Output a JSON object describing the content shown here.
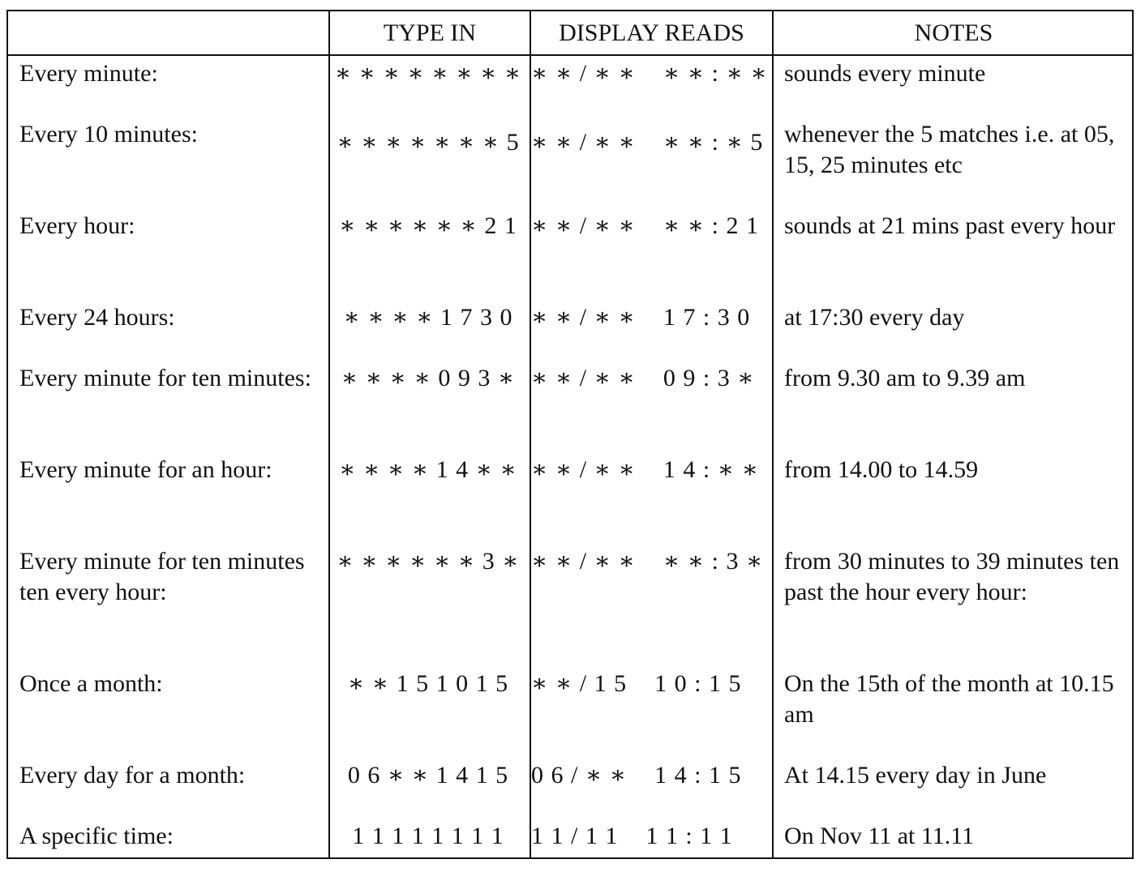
{
  "headers": [
    "",
    "TYPE IN",
    "DISPLAY READS",
    "NOTES"
  ],
  "rows": [
    {
      "label": "Every minute:",
      "type_in": "∗ ∗ ∗ ∗ ∗ ∗ ∗ ∗",
      "display": "∗ ∗ / ∗ ∗    ∗ ∗ : ∗ ∗",
      "notes": "sounds every minute"
    },
    {
      "label": "Every 10 minutes:",
      "type_in": "∗ ∗ ∗ ∗ ∗ ∗ ∗ 5",
      "display": "∗ ∗ / ∗ ∗    ∗ ∗ : ∗ 5",
      "notes": "whenever the 5 matches i.e. at 05, 15, 25 minutes etc"
    },
    {
      "label": "Every hour:",
      "type_in": "∗ ∗ ∗ ∗ ∗ ∗ 2 1",
      "display": "∗ ∗ / ∗ ∗    ∗ ∗ : 2 1",
      "notes": "sounds at 21 mins past every hour"
    },
    {
      "label": "Every 24 hours:",
      "type_in": "∗ ∗ ∗ ∗ 1 7 3 0",
      "display": "∗ ∗ / ∗ ∗    1 7 : 3 0",
      "notes": "at 17:30 every day"
    },
    {
      "label": "Every minute for ten minutes:",
      "type_in": "∗ ∗ ∗ ∗ 0 9 3 ∗",
      "display": "∗ ∗ / ∗ ∗    0 9 : 3 ∗",
      "notes": "from 9.30 am to 9.39 am"
    },
    {
      "label": "Every minute for an hour:",
      "type_in": "∗ ∗ ∗ ∗ 1 4 ∗ ∗",
      "display": "∗ ∗ / ∗ ∗    1 4 : ∗ ∗",
      "notes": "from 14.00 to 14.59"
    },
    {
      "label": "Every minute for ten minutes ten every hour:",
      "type_in": "∗ ∗ ∗ ∗ ∗ ∗ 3 ∗",
      "display": "∗ ∗ / ∗ ∗    ∗ ∗ : 3 ∗",
      "notes": "from 30 minutes to 39 minutes ten past the hour every hour:"
    },
    {
      "label": "Once a month:",
      "type_in": "∗ ∗ 1 5 1 0 1 5",
      "display": "∗ ∗ / 1 5    1 0 : 1 5",
      "notes": "On the 15th of the month at 10.15 am"
    },
    {
      "label": "Every day for a month:",
      "type_in": "0 6 ∗ ∗ 1 4 1 5",
      "display": "0 6 / ∗ ∗    1 4 : 1 5",
      "notes": "At 14.15 every day in June"
    },
    {
      "label": "A specific time:",
      "type_in": "1 1 1 1 1 1 1 1",
      "display": "1 1 / 1 1    1 1 : 1 1",
      "notes": "On Nov 11 at 11.11"
    }
  ]
}
